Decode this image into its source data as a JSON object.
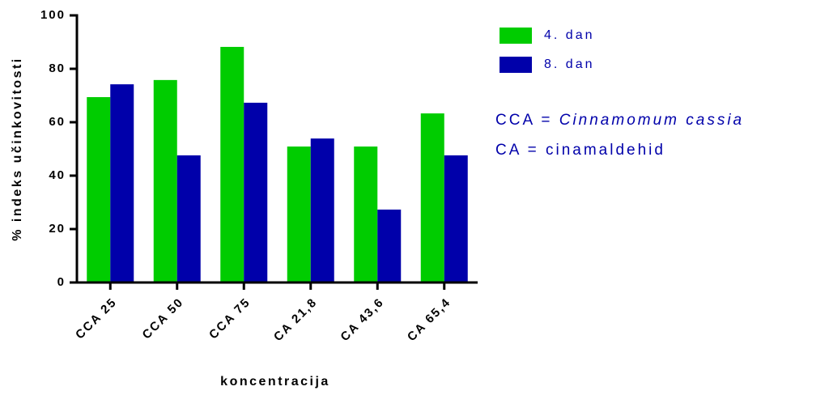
{
  "chart_data": {
    "type": "bar",
    "categories": [
      "CCA 25",
      "CCA 50",
      "CCA 75",
      "CA 21,8",
      "CA 43,6",
      "CA 65,4"
    ],
    "series": [
      {
        "name": "4. dan",
        "color": "#00cc00",
        "values": [
          69.4,
          75.8,
          88.2,
          50.9,
          50.9,
          63.3
        ]
      },
      {
        "name": "8. dan",
        "color": "#0000aa",
        "values": [
          74.2,
          47.6,
          67.3,
          53.9,
          27.3,
          47.6
        ]
      }
    ],
    "y_label": "% indeks učinkovitosti",
    "x_label": "koncentracija",
    "notes": [
      {
        "text": "CCA = ",
        "italic": "Cinnamomum cassia"
      },
      {
        "text": "CA = cinamaldehid"
      }
    ],
    "ylim": [
      0,
      100
    ],
    "yticks": [
      0,
      20,
      40,
      60,
      80,
      100
    ]
  }
}
